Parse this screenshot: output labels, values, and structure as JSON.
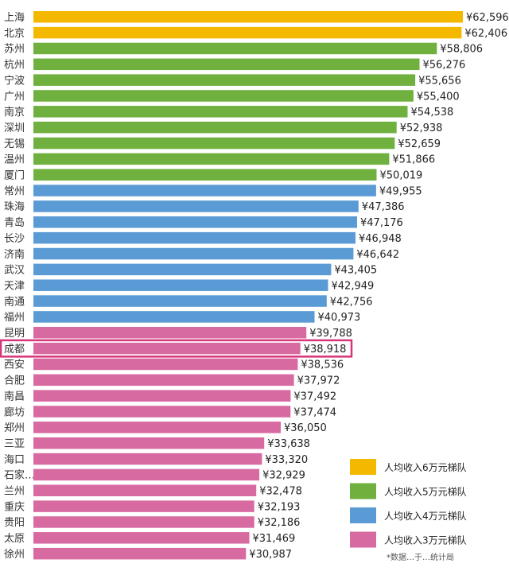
{
  "chart_data": {
    "type": "bar",
    "orientation": "horizontal",
    "title": "",
    "xlabel": "",
    "ylabel": "",
    "value_prefix": "¥",
    "xlim": [
      0,
      63000
    ],
    "grid": false,
    "legend_position": "bottom-right",
    "categories": [
      "上海",
      "北京",
      "苏州",
      "杭州",
      "宁波",
      "广州",
      "南京",
      "深圳",
      "无锡",
      "温州",
      "厦门",
      "常州",
      "珠海",
      "青岛",
      "长沙",
      "济南",
      "武汉",
      "天津",
      "南通",
      "福州",
      "昆明",
      "成都",
      "西安",
      "合肥",
      "南昌",
      "廊坊",
      "郑州",
      "三亚",
      "海口",
      "石家…",
      "兰州",
      "重庆",
      "贵阳",
      "太原",
      "徐州"
    ],
    "values": [
      62596,
      62406,
      58806,
      56276,
      55656,
      55400,
      54538,
      52938,
      52659,
      51866,
      50019,
      49955,
      47386,
      47176,
      46948,
      46642,
      43405,
      42949,
      42756,
      40973,
      39788,
      38918,
      38536,
      37972,
      37492,
      37474,
      36050,
      33638,
      33320,
      32929,
      32478,
      32193,
      32186,
      31469,
      30987
    ],
    "value_labels": [
      "¥62,596",
      "¥62,406",
      "¥58,806",
      "¥56,276",
      "¥55,656",
      "¥55,400",
      "¥54,538",
      "¥52,938",
      "¥52,659",
      "¥51,866",
      "¥50,019",
      "¥49,955",
      "¥47,386",
      "¥47,176",
      "¥46,948",
      "¥46,642",
      "¥43,405",
      "¥42,949",
      "¥42,756",
      "¥40,973",
      "¥39,788",
      "¥38,918",
      "¥38,536",
      "¥37,972",
      "¥37,492",
      "¥37,474",
      "¥36,050",
      "¥33,638",
      "¥33,320",
      "¥32,929",
      "¥32,478",
      "¥32,193",
      "¥32,186",
      "¥31,469",
      "¥30,987"
    ],
    "tiers": [
      0,
      0,
      1,
      1,
      1,
      1,
      1,
      1,
      1,
      1,
      1,
      2,
      2,
      2,
      2,
      2,
      2,
      2,
      2,
      2,
      3,
      3,
      3,
      3,
      3,
      3,
      3,
      3,
      3,
      3,
      3,
      3,
      3,
      3,
      3
    ],
    "highlight_category": "成都",
    "highlight_color": "#d6357a",
    "legend": [
      {
        "label": "人均收入6万元梯队",
        "color": "#f5b800"
      },
      {
        "label": "人均收入5万元梯队",
        "color": "#6fb03f"
      },
      {
        "label": "人均收入4万元梯队",
        "color": "#5b9bd5"
      },
      {
        "label": "人均收入3万元梯队",
        "color": "#d86aa2"
      }
    ],
    "source_note": "*数据…于…统计局"
  }
}
